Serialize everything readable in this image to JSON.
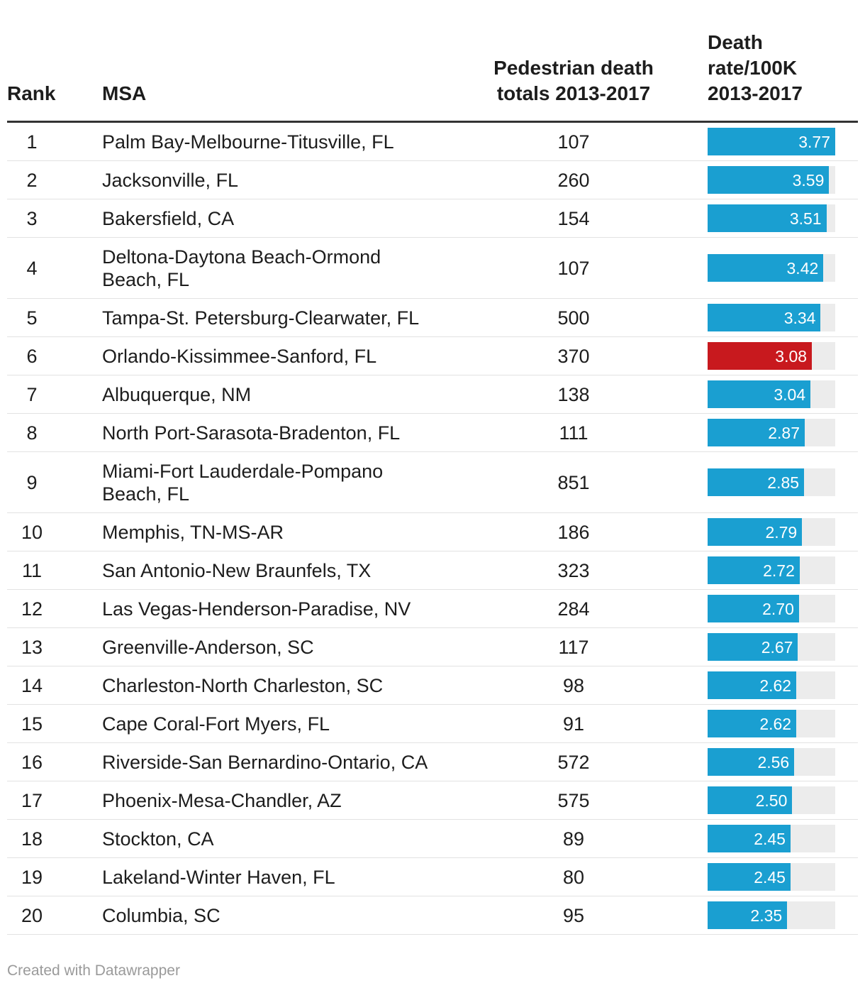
{
  "columns": {
    "rank": "Rank",
    "msa": "MSA",
    "total_line1": "Pedestrian death",
    "total_line2": "totals 2013-2017",
    "rate_line1": "Death",
    "rate_line2": "rate/100K",
    "rate_line3": "2013-2017"
  },
  "colors": {
    "bar": "#1a9fd1",
    "highlight": "#c8191e",
    "track": "#ececec"
  },
  "chart_data": {
    "type": "table",
    "bar_max": 3.77,
    "rows": [
      {
        "rank": "1",
        "msa": "Palm Bay-Melbourne-Titusville, FL",
        "total": "107",
        "rate": 3.77,
        "rate_label": "3.77"
      },
      {
        "rank": "2",
        "msa": "Jacksonville, FL",
        "total": "260",
        "rate": 3.59,
        "rate_label": "3.59"
      },
      {
        "rank": "3",
        "msa": "Bakersfield, CA",
        "total": "154",
        "rate": 3.51,
        "rate_label": "3.51"
      },
      {
        "rank": "4",
        "msa": "Deltona-Daytona Beach-Ormond Beach, FL",
        "total": "107",
        "rate": 3.42,
        "rate_label": "3.42"
      },
      {
        "rank": "5",
        "msa": "Tampa-St. Petersburg-Clearwater, FL",
        "total": "500",
        "rate": 3.34,
        "rate_label": "3.34"
      },
      {
        "rank": "6",
        "msa": "Orlando-Kissimmee-Sanford, FL",
        "total": "370",
        "rate": 3.08,
        "rate_label": "3.08",
        "highlight": true
      },
      {
        "rank": "7",
        "msa": "Albuquerque, NM",
        "total": "138",
        "rate": 3.04,
        "rate_label": "3.04"
      },
      {
        "rank": "8",
        "msa": "North Port-Sarasota-Bradenton, FL",
        "total": "111",
        "rate": 2.87,
        "rate_label": "2.87"
      },
      {
        "rank": "9",
        "msa": "Miami-Fort Lauderdale-Pompano Beach, FL",
        "total": "851",
        "rate": 2.85,
        "rate_label": "2.85"
      },
      {
        "rank": "10",
        "msa": "Memphis, TN-MS-AR",
        "total": "186",
        "rate": 2.79,
        "rate_label": "2.79"
      },
      {
        "rank": "11",
        "msa": "San Antonio-New Braunfels, TX",
        "total": "323",
        "rate": 2.72,
        "rate_label": "2.72"
      },
      {
        "rank": "12",
        "msa": "Las Vegas-Henderson-Paradise, NV",
        "total": "284",
        "rate": 2.7,
        "rate_label": "2.70"
      },
      {
        "rank": "13",
        "msa": "Greenville-Anderson, SC",
        "total": "117",
        "rate": 2.67,
        "rate_label": "2.67"
      },
      {
        "rank": "14",
        "msa": "Charleston-North Charleston, SC",
        "total": "98",
        "rate": 2.62,
        "rate_label": "2.62"
      },
      {
        "rank": "15",
        "msa": "Cape Coral-Fort Myers, FL",
        "total": "91",
        "rate": 2.62,
        "rate_label": "2.62"
      },
      {
        "rank": "16",
        "msa": "Riverside-San Bernardino-Ontario, CA",
        "total": "572",
        "rate": 2.56,
        "rate_label": "2.56"
      },
      {
        "rank": "17",
        "msa": "Phoenix-Mesa-Chandler, AZ",
        "total": "575",
        "rate": 2.5,
        "rate_label": "2.50"
      },
      {
        "rank": "18",
        "msa": "Stockton, CA",
        "total": "89",
        "rate": 2.45,
        "rate_label": "2.45"
      },
      {
        "rank": "19",
        "msa": "Lakeland-Winter Haven, FL",
        "total": "80",
        "rate": 2.45,
        "rate_label": "2.45"
      },
      {
        "rank": "20",
        "msa": "Columbia, SC",
        "total": "95",
        "rate": 2.35,
        "rate_label": "2.35"
      }
    ]
  },
  "footer": "Created with Datawrapper"
}
